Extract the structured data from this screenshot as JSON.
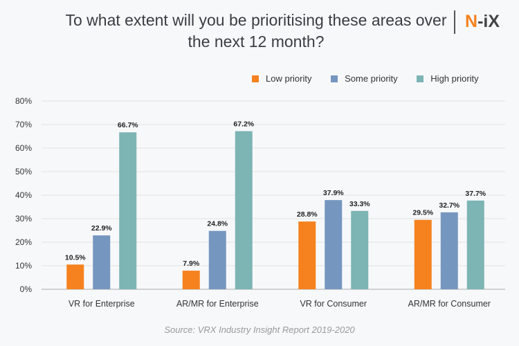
{
  "logo": "N-iX",
  "source": "Source: VRX Industry Insight Report 2019-2020",
  "chart_data": {
    "type": "bar",
    "title": "To what extent will you be prioritising these areas over  the next 12 month?",
    "categories": [
      "VR for Enterprise",
      "AR/MR for Enterprise",
      "VR for Consumer",
      "AR/MR for Consumer"
    ],
    "series": [
      {
        "name": "Low priority",
        "color": "#f5821f",
        "values": [
          10.5,
          7.9,
          28.8,
          29.5
        ]
      },
      {
        "name": "Some priority",
        "color": "#7596bf",
        "values": [
          22.9,
          24.8,
          37.9,
          32.7
        ]
      },
      {
        "name": "High priority",
        "color": "#7db4b4",
        "values": [
          66.7,
          67.2,
          33.3,
          37.7
        ]
      }
    ],
    "ylim": [
      0,
      80
    ],
    "yticks": [
      "0%",
      "10%",
      "20%",
      "30%",
      "40%",
      "50%",
      "60%",
      "70%",
      "80%"
    ],
    "grid": true,
    "legend": "top-right"
  }
}
